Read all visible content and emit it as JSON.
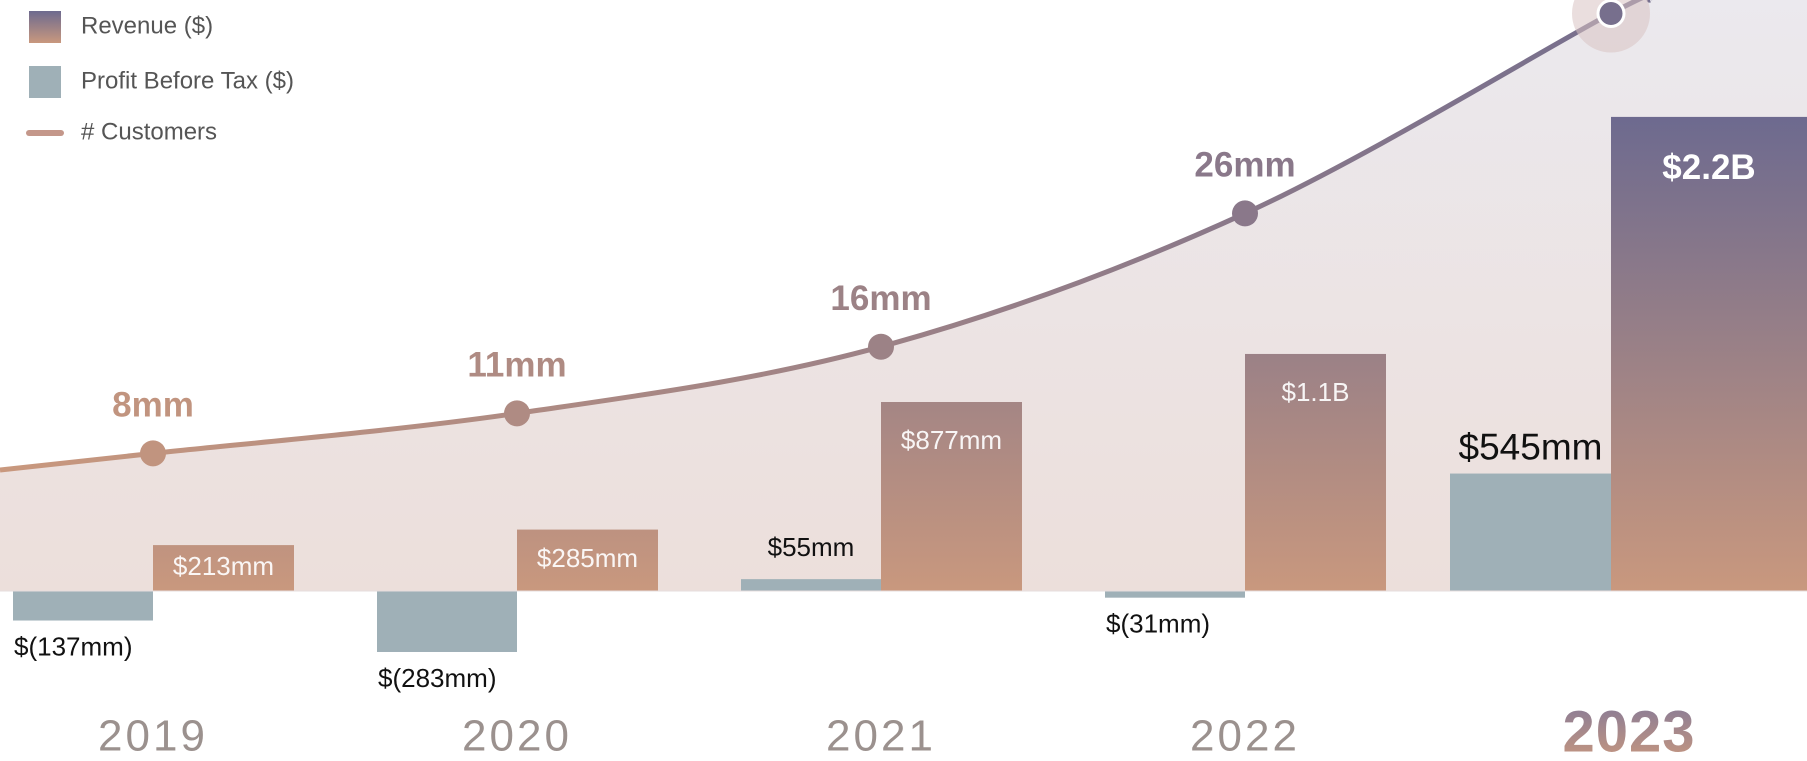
{
  "chart_data": {
    "type": "bar",
    "categories": [
      "2019",
      "2020",
      "2021",
      "2022",
      "2023"
    ],
    "series": [
      {
        "name": "Revenue ($)",
        "color": [
          "#6d6a8f",
          "#c9987e"
        ],
        "values": [
          213,
          285,
          877,
          1100,
          2200
        ],
        "value_labels": [
          "$213mm",
          "$285mm",
          "$877mm",
          "$1.1B",
          "$2.2B"
        ]
      },
      {
        "name": "Profit Before Tax ($)",
        "color": "#9fb0b7",
        "values": [
          -137,
          -283,
          55,
          -31,
          545
        ],
        "value_labels": [
          "$(137mm)",
          "$(283mm)",
          "$55mm",
          "$(31mm)",
          "$545mm"
        ]
      },
      {
        "name": "# Customers",
        "type": "line",
        "color": [
          "#c9987e",
          "#6d6a8f"
        ],
        "values": [
          8,
          11,
          16,
          26,
          41
        ],
        "value_labels": [
          "8mm",
          "11mm",
          "16mm",
          "26mm",
          null
        ]
      }
    ]
  }
}
